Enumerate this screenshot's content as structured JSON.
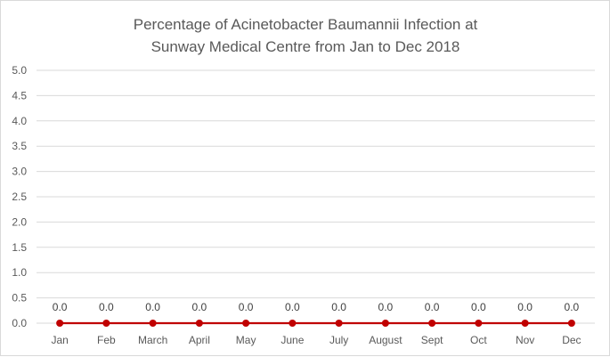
{
  "chart_data": {
    "type": "line",
    "title_lines": [
      "Percentage of Acinetobacter  Baumannii  Infection at",
      "Sunway Medical Centre from Jan to Dec 2018"
    ],
    "categories": [
      "Jan",
      "Feb",
      "March",
      "April",
      "May",
      "June",
      "July",
      "August",
      "Sept",
      "Oct",
      "Nov",
      "Dec"
    ],
    "series": [
      {
        "values": [
          0.0,
          0.0,
          0.0,
          0.0,
          0.0,
          0.0,
          0.0,
          0.0,
          0.0,
          0.0,
          0.0,
          0.0
        ]
      }
    ],
    "data_labels": [
      "0.0",
      "0.0",
      "0.0",
      "0.0",
      "0.0",
      "0.0",
      "0.0",
      "0.0",
      "0.0",
      "0.0",
      "0.0",
      "0.0"
    ],
    "y_tick_labels": [
      "0.0",
      "0.5",
      "1.0",
      "1.5",
      "2.0",
      "2.5",
      "3.0",
      "3.5",
      "4.0",
      "4.5",
      "5.0"
    ],
    "ylim": [
      0,
      5
    ],
    "xlabel": "",
    "ylabel": "",
    "grid": true,
    "legend": "none",
    "series_color": "#c00000",
    "gridline_color": "#d9d9d9"
  }
}
